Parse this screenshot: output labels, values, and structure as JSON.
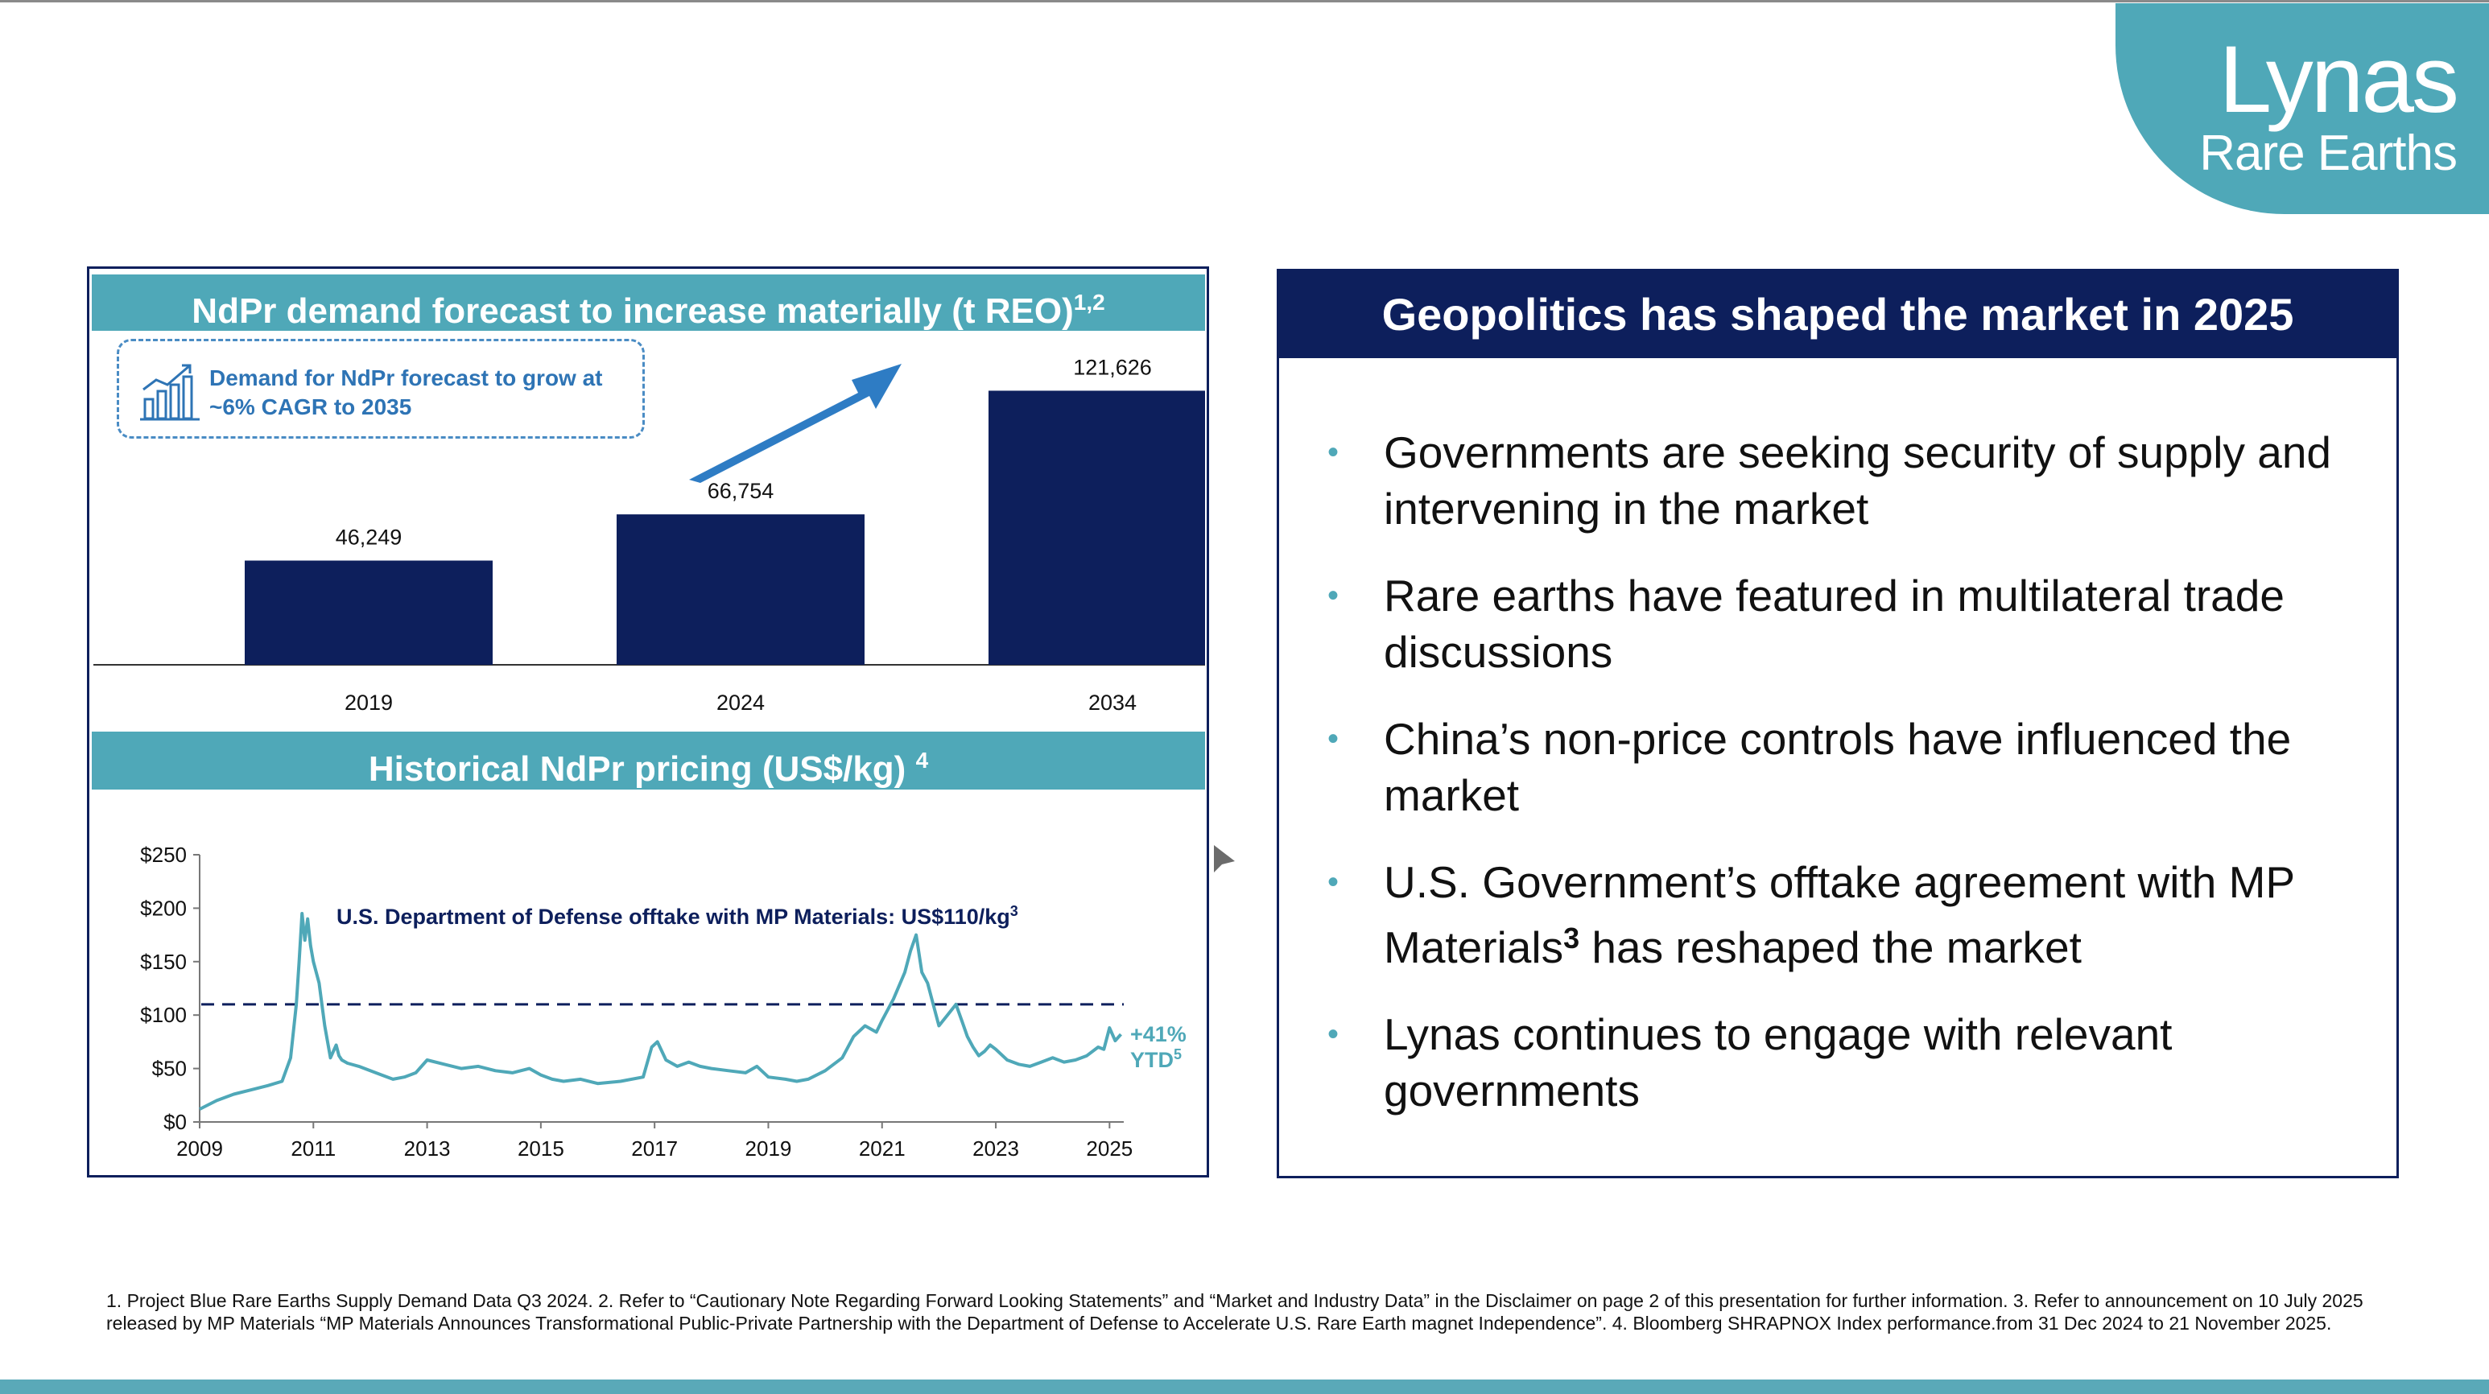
{
  "logo": {
    "name": "Lynas",
    "sub": "Rare Earths"
  },
  "left_panel": {
    "demand_title": "NdPr demand forecast to increase materially (t REO)",
    "demand_title_sup": "1,2",
    "callout": "Demand for NdPr forecast to grow at ~6% CAGR to 2035",
    "pricing_title": "Historical NdPr pricing (US$/kg)",
    "pricing_title_sup": "4",
    "offtake_note": "U.S. Department of Defense offtake with MP Materials: US$110/kg",
    "offtake_note_sup": "3",
    "ytd_line1": "+41%",
    "ytd_line2": "YTD",
    "ytd_sup": "5"
  },
  "right_panel": {
    "header": "Geopolitics has shaped the market in 2025",
    "bullet_char": "•",
    "bullets": [
      "Governments are seeking security of supply and intervening in the market",
      "Rare earths have featured in multilateral trade discussions",
      "China’s non-price controls have influenced the market",
      "U.S. Government’s offtake agreement with MP Materials",
      "Lynas continues to engage with relevant governments"
    ],
    "bullet4_sup": "3",
    "bullet4_tail": " has reshaped the market"
  },
  "footnote": "1. Project Blue Rare Earths Supply Demand Data Q3 2024. 2. Refer to “Cautionary Note Regarding Forward Looking Statements” and “Market and Industry Data” in the Disclaimer on page 2 of this presentation for further information. 3. Refer to announcement on 10 July 2025 released by MP Materials “MP Materials Announces Transformational Public-Private Partnership with the Department of Defense to Accelerate U.S. Rare Earth magnet Independence”. 4. Bloomberg SHRAPNOX Index performance.from 31 Dec 2024 to 21 November 2025.",
  "colors": {
    "navy": "#0d1f5c",
    "teal": "#4fa8b8",
    "arrow": "#2e7cc4",
    "ytd": "#4fa8b8"
  },
  "icons": {
    "callout": "growth-chart-icon",
    "cursor": "mouse-pointer-icon"
  },
  "chart_data": [
    {
      "type": "bar",
      "title": "NdPr demand forecast to increase materially (t REO)",
      "categories": [
        "2019",
        "2024",
        "2034"
      ],
      "values": [
        46249,
        66754,
        121626
      ],
      "value_labels": [
        "46,249",
        "66,754",
        "121,626"
      ],
      "ylim": [
        0,
        130000
      ],
      "grid": false
    },
    {
      "type": "line",
      "title": "Historical NdPr pricing (US$/kg)",
      "xlim": [
        2009,
        2025.25
      ],
      "ylim": [
        0,
        250
      ],
      "x_ticks": [
        "2009",
        "2011",
        "2013",
        "2015",
        "2017",
        "2019",
        "2021",
        "2023",
        "2025"
      ],
      "y_ticks": [
        "$250",
        "$200",
        "$150",
        "$100",
        "$50",
        "$0"
      ],
      "reference_line": 110,
      "grid": false,
      "x": [
        2009.0,
        2009.3,
        2009.6,
        2009.9,
        2010.2,
        2010.45,
        2010.6,
        2010.7,
        2010.75,
        2010.8,
        2010.85,
        2010.9,
        2010.95,
        2011.0,
        2011.1,
        2011.2,
        2011.3,
        2011.4,
        2011.45,
        2011.5,
        2011.6,
        2011.8,
        2012.0,
        2012.2,
        2012.4,
        2012.6,
        2012.8,
        2013.0,
        2013.3,
        2013.6,
        2013.9,
        2014.2,
        2014.5,
        2014.8,
        2015.0,
        2015.2,
        2015.4,
        2015.7,
        2016.0,
        2016.4,
        2016.8,
        2016.95,
        2017.05,
        2017.2,
        2017.4,
        2017.6,
        2017.8,
        2018.0,
        2018.3,
        2018.6,
        2018.8,
        2019.0,
        2019.3,
        2019.5,
        2019.7,
        2020.0,
        2020.3,
        2020.5,
        2020.7,
        2020.9,
        2021.0,
        2021.2,
        2021.4,
        2021.5,
        2021.6,
        2021.7,
        2021.8,
        2021.9,
        2022.0,
        2022.15,
        2022.3,
        2022.4,
        2022.5,
        2022.6,
        2022.7,
        2022.8,
        2022.9,
        2023.0,
        2023.2,
        2023.4,
        2023.6,
        2023.8,
        2024.0,
        2024.2,
        2024.4,
        2024.6,
        2024.8,
        2024.9,
        2025.0,
        2025.1,
        2025.2
      ],
      "y": [
        12,
        20,
        26,
        30,
        34,
        38,
        60,
        110,
        150,
        195,
        170,
        190,
        165,
        150,
        130,
        90,
        60,
        72,
        62,
        58,
        55,
        52,
        48,
        44,
        40,
        42,
        46,
        58,
        54,
        50,
        52,
        48,
        46,
        50,
        44,
        40,
        38,
        40,
        36,
        38,
        42,
        70,
        75,
        58,
        52,
        56,
        52,
        50,
        48,
        46,
        52,
        42,
        40,
        38,
        40,
        48,
        60,
        80,
        90,
        84,
        95,
        115,
        140,
        160,
        175,
        140,
        130,
        110,
        90,
        100,
        110,
        95,
        80,
        70,
        62,
        66,
        72,
        68,
        58,
        54,
        52,
        56,
        60,
        56,
        58,
        62,
        70,
        68,
        88,
        76,
        82
      ]
    }
  ]
}
